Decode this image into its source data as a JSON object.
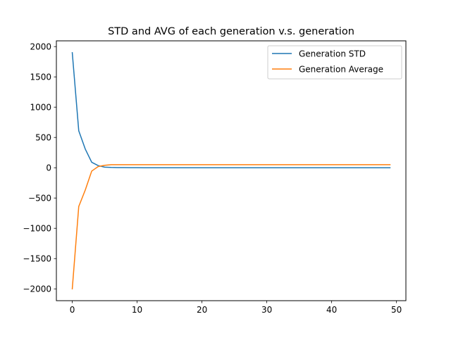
{
  "chart_data": {
    "type": "line",
    "title": "STD and AVG of each generation v.s. generation",
    "xlabel": "",
    "ylabel": "",
    "xlim": [
      -2.45,
      51.45
    ],
    "ylim": [
      -2195,
      2095
    ],
    "xticks": [
      0,
      10,
      20,
      30,
      40,
      50
    ],
    "yticks": [
      -2000,
      -1500,
      -1000,
      -500,
      0,
      500,
      1000,
      1500,
      2000
    ],
    "xtick_labels": [
      "0",
      "10",
      "20",
      "30",
      "40",
      "50"
    ],
    "ytick_labels": [
      "−2000",
      "−1500",
      "−1000",
      "−500",
      "0",
      "500",
      "1000",
      "1500",
      "2000"
    ],
    "grid": false,
    "legend_position": "top-right",
    "series": [
      {
        "name": "Generation STD",
        "color": "#1f77b4",
        "x": [
          0,
          1,
          2,
          3,
          4,
          5,
          6,
          7,
          8,
          9,
          10,
          11,
          12,
          13,
          14,
          15,
          16,
          17,
          18,
          19,
          20,
          21,
          22,
          23,
          24,
          25,
          26,
          27,
          28,
          29,
          30,
          31,
          32,
          33,
          34,
          35,
          36,
          37,
          38,
          39,
          40,
          41,
          42,
          43,
          44,
          45,
          46,
          47,
          48,
          49
        ],
        "values": [
          1900,
          610,
          310,
          90,
          35,
          10,
          5,
          3,
          2,
          1,
          1,
          0,
          0,
          0,
          0,
          0,
          0,
          0,
          0,
          0,
          0,
          0,
          0,
          0,
          0,
          0,
          0,
          0,
          0,
          0,
          0,
          0,
          0,
          0,
          0,
          0,
          0,
          0,
          0,
          0,
          0,
          0,
          0,
          0,
          0,
          0,
          0,
          0,
          0,
          0
        ]
      },
      {
        "name": "Generation Average",
        "color": "#ff7f0e",
        "x": [
          0,
          1,
          2,
          3,
          4,
          5,
          6,
          7,
          8,
          9,
          10,
          11,
          12,
          13,
          14,
          15,
          16,
          17,
          18,
          19,
          20,
          21,
          22,
          23,
          24,
          25,
          26,
          27,
          28,
          29,
          30,
          31,
          32,
          33,
          34,
          35,
          36,
          37,
          38,
          39,
          40,
          41,
          42,
          43,
          44,
          45,
          46,
          47,
          48,
          49
        ],
        "values": [
          -2000,
          -640,
          -370,
          -55,
          20,
          40,
          50,
          50,
          50,
          50,
          50,
          50,
          50,
          50,
          50,
          50,
          50,
          50,
          50,
          50,
          50,
          50,
          50,
          50,
          50,
          50,
          50,
          50,
          50,
          50,
          50,
          50,
          50,
          50,
          50,
          50,
          50,
          50,
          50,
          50,
          50,
          50,
          50,
          50,
          50,
          50,
          50,
          50,
          50,
          50
        ]
      }
    ]
  }
}
